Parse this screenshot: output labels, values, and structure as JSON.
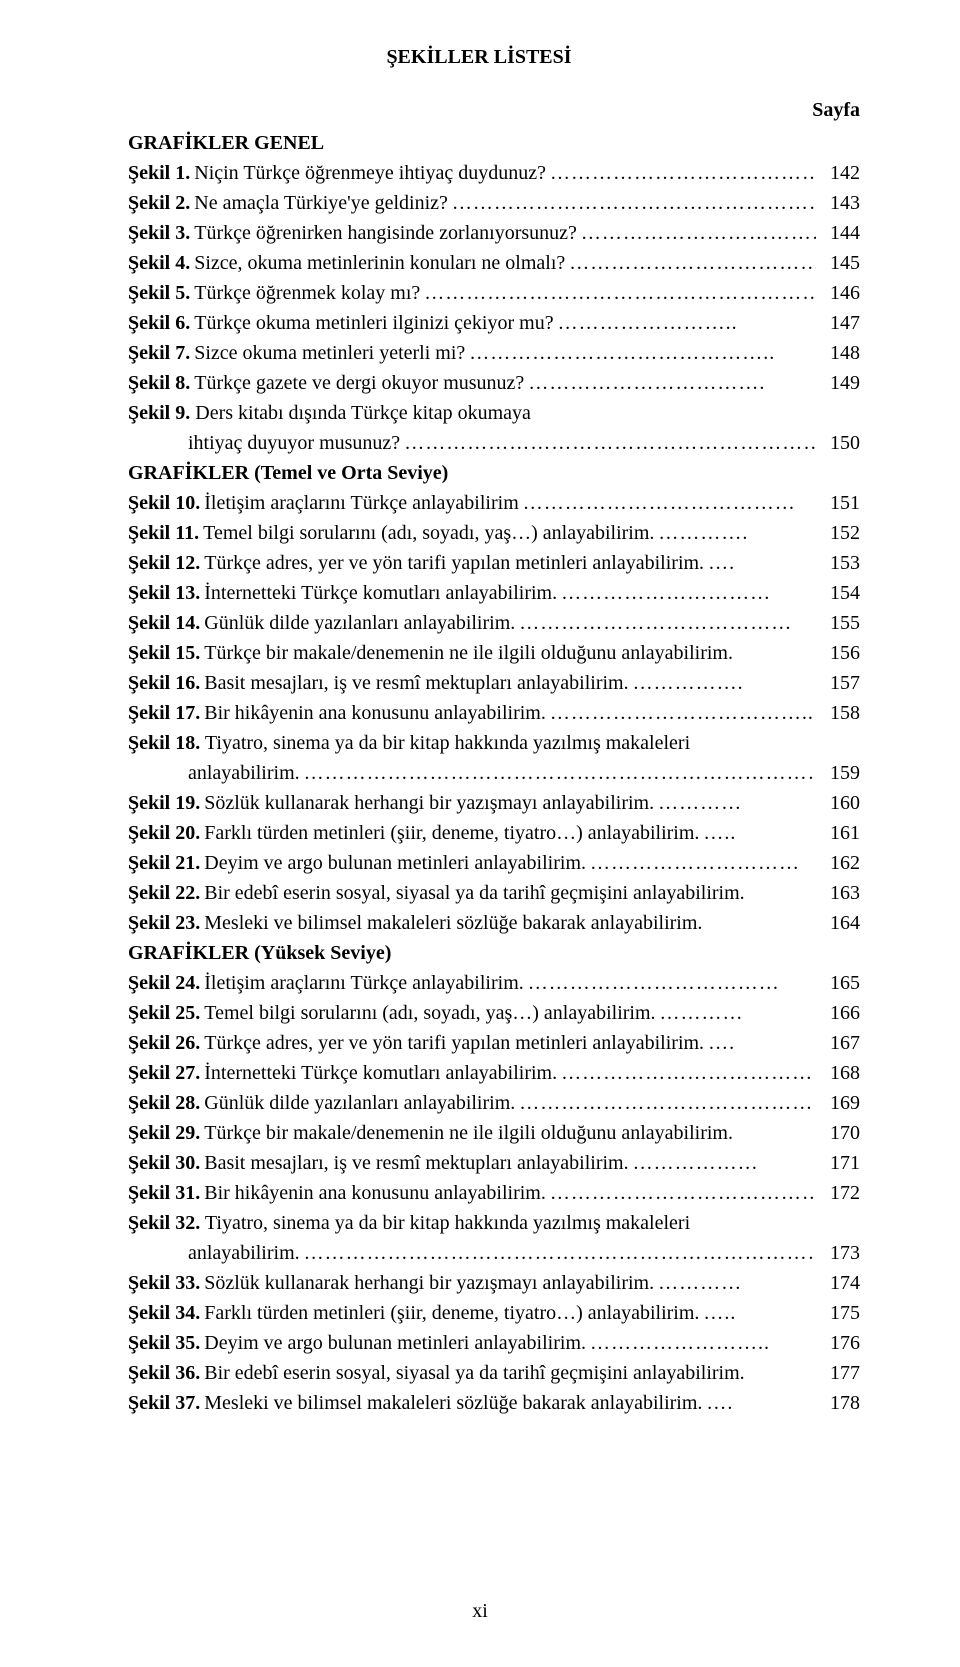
{
  "title": "ŞEKİLLER LİSTESİ",
  "page_label": "Sayfa",
  "footer": "xi",
  "sections": {
    "s1": "GRAFİKLER GENEL",
    "s2": "GRAFİKLER (Temel ve Orta Seviye)",
    "s3": "GRAFİKLER (Yüksek Seviye)"
  },
  "items": {
    "i1": {
      "label": "Şekil 1.",
      "text": " Niçin Türkçe öğrenmeye ihtiyaç duydunuz?",
      "page": "142"
    },
    "i2": {
      "label": "Şekil 2.",
      "text": " Ne amaçla Türkiye'ye geldiniz?",
      "page": "143"
    },
    "i3": {
      "label": "Şekil 3.",
      "text": " Türkçe öğrenirken hangisinde zorlanıyorsunuz?",
      "page": "144"
    },
    "i4": {
      "label": "Şekil 4.",
      "text": " Sizce, okuma metinlerinin konuları ne olmalı?",
      "page": "145"
    },
    "i5": {
      "label": "Şekil 5.",
      "text": " Türkçe öğrenmek kolay mı?",
      "page": "146"
    },
    "i6": {
      "label": "Şekil 6.",
      "text": " Türkçe okuma metinleri ilginizi çekiyor mu?",
      "page": "147"
    },
    "i7": {
      "label": "Şekil 7.",
      "text": " Sizce okuma metinleri yeterli mi?",
      "page": "148"
    },
    "i8": {
      "label": "Şekil 8.",
      "text": " Türkçe gazete ve dergi okuyor musunuz?",
      "page": "149"
    },
    "i9": {
      "label": "Şekil 9.",
      "text1": " Ders kitabı dışında Türkçe kitap okumaya",
      "text2": "ihtiyaç duyuyor musunuz?",
      "page": "150"
    },
    "i10": {
      "label": "Şekil 10.",
      "text": " İletişim araçlarını Türkçe anlayabilirim",
      "page": "151"
    },
    "i11": {
      "label": "Şekil 11.",
      "text": " Temel bilgi sorularını (adı, soyadı, yaş…) anlayabilirim.",
      "page": "152"
    },
    "i12": {
      "label": "Şekil 12.",
      "text": " Türkçe adres, yer ve yön tarifi yapılan metinleri anlayabilirim.",
      "page": "153"
    },
    "i13": {
      "label": "Şekil 13.",
      "text": " İnternetteki Türkçe komutları anlayabilirim.",
      "page": "154"
    },
    "i14": {
      "label": "Şekil 14.",
      "text": " Günlük dilde yazılanları anlayabilirim.",
      "page": "155"
    },
    "i15": {
      "label": "Şekil 15.",
      "text": " Türkçe bir makale/denemenin ne ile ilgili olduğunu anlayabilirim.",
      "page": "156"
    },
    "i16": {
      "label": "Şekil 16.",
      "text": " Basit mesajları, iş ve resmî mektupları anlayabilirim.",
      "page": "157"
    },
    "i17": {
      "label": "Şekil 17.",
      "text": " Bir hikâyenin ana konusunu anlayabilirim.",
      "page": "158"
    },
    "i18": {
      "label": "Şekil 18.",
      "text1": " Tiyatro, sinema ya da bir kitap hakkında yazılmış makaleleri",
      "text2": "anlayabilirim.",
      "page": "159"
    },
    "i19": {
      "label": "Şekil 19.",
      "text": " Sözlük kullanarak herhangi bir yazışmayı anlayabilirim.",
      "page": "160"
    },
    "i20": {
      "label": "Şekil 20.",
      "text": " Farklı türden metinleri (şiir, deneme, tiyatro…) anlayabilirim.",
      "page": "161"
    },
    "i21": {
      "label": "Şekil 21.",
      "text": " Deyim ve argo bulunan metinleri anlayabilirim.",
      "page": "162"
    },
    "i22": {
      "label": "Şekil 22.",
      "text": " Bir edebî eserin sosyal, siyasal ya da tarihî geçmişini anlayabilirim.",
      "page": "163"
    },
    "i23": {
      "label": "Şekil 23.",
      "text": " Mesleki ve bilimsel makaleleri sözlüğe bakarak anlayabilirim.",
      "page": "164"
    },
    "i24": {
      "label": "Şekil 24.",
      "text": " İletişim araçlarını Türkçe anlayabilirim.",
      "page": "165"
    },
    "i25": {
      "label": "Şekil 25.",
      "text": " Temel bilgi sorularını (adı, soyadı, yaş…) anlayabilirim.",
      "page": "166"
    },
    "i26": {
      "label": "Şekil 26.",
      "text": " Türkçe adres, yer ve yön tarifi yapılan metinleri anlayabilirim.",
      "page": "167"
    },
    "i27": {
      "label": "Şekil 27.",
      "text": " İnternetteki Türkçe komutları anlayabilirim.",
      "page": "168"
    },
    "i28": {
      "label": "Şekil 28.",
      "text": " Günlük dilde yazılanları anlayabilirim.",
      "page": "169"
    },
    "i29": {
      "label": "Şekil 29.",
      "text": " Türkçe bir makale/denemenin ne ile ilgili olduğunu anlayabilirim.",
      "page": "170"
    },
    "i30": {
      "label": "Şekil 30.",
      "text": " Basit mesajları, iş ve resmî mektupları anlayabilirim.",
      "page": "171"
    },
    "i31": {
      "label": "Şekil 31.",
      "text": " Bir hikâyenin ana konusunu anlayabilirim.",
      "page": "172"
    },
    "i32": {
      "label": "Şekil 32.",
      "text1": " Tiyatro, sinema ya da bir kitap hakkında yazılmış makaleleri",
      "text2": "anlayabilirim.",
      "page": "173"
    },
    "i33": {
      "label": "Şekil 33.",
      "text": " Sözlük kullanarak herhangi bir yazışmayı anlayabilirim.",
      "page": "174"
    },
    "i34": {
      "label": "Şekil 34.",
      "text": " Farklı türden metinleri (şiir, deneme, tiyatro…) anlayabilirim.",
      "page": "175"
    },
    "i35": {
      "label": "Şekil 35.",
      "text": " Deyim ve argo bulunan metinleri anlayabilirim.",
      "page": "176"
    },
    "i36": {
      "label": "Şekil 36.",
      "text": " Bir edebî eserin sosyal, siyasal ya da tarihî geçmişini anlayabilirim.",
      "page": "177"
    },
    "i37": {
      "label": "Şekil 37.",
      "text": " Mesleki ve bilimsel makaleleri sözlüğe bakarak anlayabilirim.",
      "page": "178"
    }
  }
}
